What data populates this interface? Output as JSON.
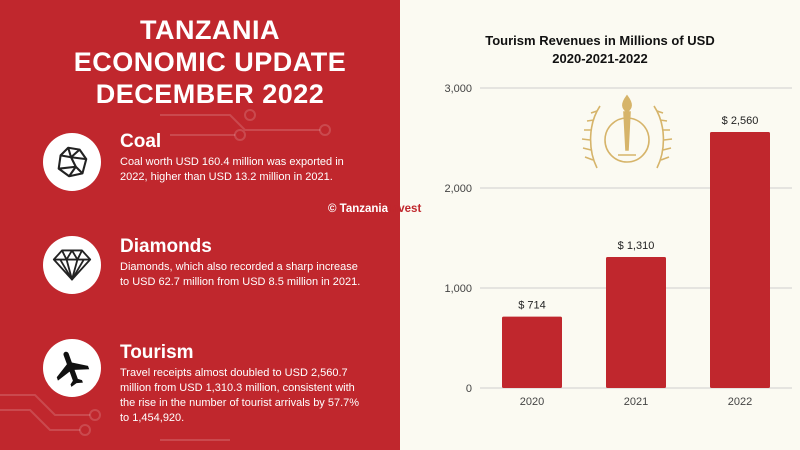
{
  "headline": {
    "line1": "TANZANIA",
    "line2": "ECONOMIC UPDATE",
    "line3": "DECEMBER 2022"
  },
  "sections": [
    {
      "title": "Coal",
      "icon": "coal-rock-icon",
      "text": "Coal worth USD 160.4 million was exported in 2022, higher than USD 13.2 million in 2021."
    },
    {
      "title": "Diamonds",
      "icon": "diamond-icon",
      "text": "Diamonds, which also recorded a sharp increase to USD 62.7 million from USD 8.5 million in 2021."
    },
    {
      "title": "Tourism",
      "icon": "airplane-icon",
      "text": "Travel receipts almost doubled to USD 2,560.7 million from USD 1,310.3 million, consistent with the rise in the number of tourist arrivals by 57.7% to 1,454,920."
    }
  ],
  "watermark": {
    "left": "© Tanzania",
    "right": "Invest"
  },
  "colors": {
    "brand_red": "#c0272d",
    "background_cream": "#fbfaf2",
    "emblem_gold": "#d6b46a"
  },
  "chart_data": {
    "type": "bar",
    "title_line1": "Tourism Revenues in Millions of USD",
    "title_line2": "2020-2021-2022",
    "categories": [
      "2020",
      "2021",
      "2022"
    ],
    "values": [
      714,
      1310,
      2560
    ],
    "data_labels": [
      "$ 714",
      "$ 1,310",
      "$ 2,560"
    ],
    "yticks": [
      0,
      1000,
      2000,
      3000
    ],
    "ytick_labels": [
      "0",
      "1,000",
      "2,000",
      "3,000"
    ],
    "ylim": [
      0,
      3000
    ],
    "grid": true,
    "bar_color": "#c0272d"
  }
}
